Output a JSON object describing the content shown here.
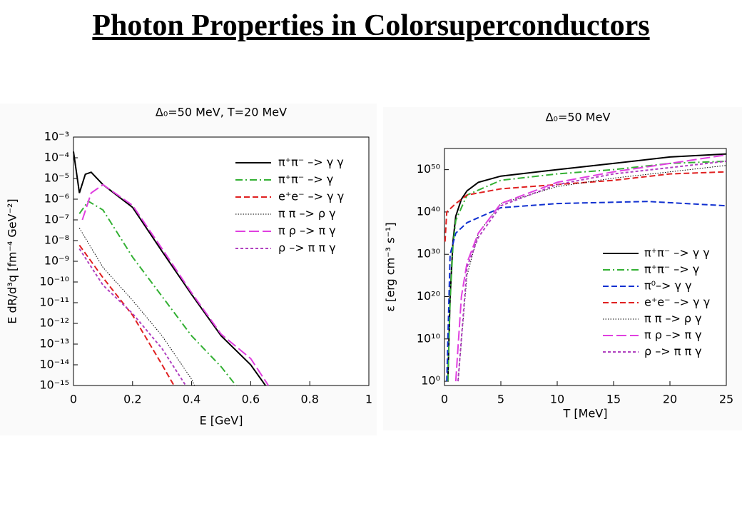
{
  "title": "Photon Properties in Colorsuperconductors",
  "chart_data": [
    {
      "type": "line",
      "title": "Δ₀=50 MeV, T=20 MeV",
      "x_label": "E [GeV]",
      "y_label": "E dR/d³q [fm⁻⁴ GeV⁻²]",
      "xlim": [
        0,
        1
      ],
      "xticks": [
        0,
        0.2,
        0.4,
        0.6,
        0.8,
        1
      ],
      "ylim": [
        1e-15,
        0.001
      ],
      "log_y": true,
      "yticks": [
        {
          "value": 0.001,
          "label": "10⁻³"
        },
        {
          "value": 0.0001,
          "label": "10⁻⁴"
        },
        {
          "value": 1e-05,
          "label": "10⁻⁵"
        },
        {
          "value": 1e-06,
          "label": "10⁻⁶"
        },
        {
          "value": 1e-07,
          "label": "10⁻⁷"
        },
        {
          "value": 1e-08,
          "label": "10⁻⁸"
        },
        {
          "value": 1e-09,
          "label": "10⁻⁹"
        },
        {
          "value": 1e-10,
          "label": "10⁻¹⁰"
        },
        {
          "value": 1e-11,
          "label": "10⁻¹¹"
        },
        {
          "value": 1e-12,
          "label": "10⁻¹²"
        },
        {
          "value": 1e-13,
          "label": "10⁻¹³"
        },
        {
          "value": 1e-14,
          "label": "10⁻¹⁴"
        },
        {
          "value": 1e-15,
          "label": "10⁻¹⁵"
        }
      ],
      "legend": "upper right",
      "series": [
        {
          "name": "π⁺π⁻ –> γ γ",
          "color": "#000000",
          "dash": "solid",
          "x": [
            0,
            0.02,
            0.04,
            0.06,
            0.1,
            0.2,
            0.3,
            0.4,
            0.5,
            0.6,
            0.65
          ],
          "values": [
            0.0002,
            2e-06,
            1.6e-05,
            2e-05,
            5e-06,
            4e-07,
            3e-09,
            2.5e-11,
            2.5e-13,
            1e-14,
            1e-15
          ]
        },
        {
          "name": "π⁺π⁻ –> γ",
          "color": "#33b033",
          "dash": "dashdot",
          "x": [
            0.02,
            0.05,
            0.1,
            0.2,
            0.3,
            0.4,
            0.5,
            0.55
          ],
          "values": [
            2e-07,
            8e-07,
            3e-07,
            1.6e-09,
            2e-11,
            2.5e-13,
            8e-15,
            1e-15
          ]
        },
        {
          "name": "e⁺e⁻ –> γ γ",
          "color": "#e02020",
          "dash": "dashed",
          "x": [
            0.02,
            0.1,
            0.2,
            0.3,
            0.34
          ],
          "values": [
            6e-09,
            1.6e-10,
            2.5e-12,
            1e-14,
            1e-15
          ]
        },
        {
          "name": "π π –> ρ γ",
          "color": "#000000",
          "dash": "dotted",
          "x": [
            0.02,
            0.1,
            0.2,
            0.3,
            0.4,
            0.41
          ],
          "values": [
            4e-08,
            5e-10,
            1.3e-11,
            2.5e-13,
            2e-15,
            1e-15
          ]
        },
        {
          "name": "π ρ –> π γ",
          "color": "#e040e0",
          "dash": "longdash",
          "x": [
            0.03,
            0.06,
            0.1,
            0.2,
            0.3,
            0.4,
            0.5,
            0.6,
            0.66
          ],
          "values": [
            1e-07,
            2e-06,
            5e-06,
            5e-07,
            4e-09,
            3e-11,
            3e-13,
            2e-14,
            1e-15
          ]
        },
        {
          "name": "ρ –> π π γ",
          "color": "#b040c0",
          "dash": "shortdash",
          "x": [
            0.02,
            0.1,
            0.2,
            0.3,
            0.38
          ],
          "values": [
            4e-09,
            7e-11,
            3e-12,
            6e-14,
            1e-15
          ]
        }
      ]
    },
    {
      "type": "line",
      "title": "Δ₀=50 MeV",
      "x_label": "T [MeV]",
      "y_label": "ε [erg cm⁻³ s⁻¹]",
      "xlim": [
        0,
        25
      ],
      "xticks": [
        0,
        5,
        10,
        15,
        20,
        25
      ],
      "ylim": [
        0.1,
        1e+55
      ],
      "log_y": true,
      "yticks": [
        {
          "value": 1,
          "label": "10⁰"
        },
        {
          "value": 10000000000.0,
          "label": "10¹⁰"
        },
        {
          "value": 1e+20,
          "label": "10²⁰"
        },
        {
          "value": 1e+30,
          "label": "10³⁰"
        },
        {
          "value": 1e+40,
          "label": "10⁴⁰"
        },
        {
          "value": 1e+50,
          "label": "10⁵⁰"
        }
      ],
      "legend": "lower right",
      "series": [
        {
          "name": "π⁺π⁻ –> γ γ",
          "color": "#000000",
          "dash": "solid",
          "x": [
            0.3,
            0.5,
            0.75,
            1,
            1.5,
            2,
            3,
            5,
            10,
            15,
            20,
            25
          ],
          "values": [
            1,
            1e+20,
            1e+33,
            1e+39,
            1e+43,
            1e+45,
            1e+47,
            3e+48,
            1e+50,
            3e+51,
            1e+53,
            5e+53
          ]
        },
        {
          "name": "π⁺π⁻ –> γ",
          "color": "#33b033",
          "dash": "dashdot",
          "x": [
            0.3,
            0.5,
            0.75,
            1,
            2,
            5,
            10,
            15,
            20,
            25
          ],
          "values": [
            1,
            1e+19,
            1e+32,
            1e+38,
            1e+44,
            3e+47,
            1e+49,
            1e+50,
            3e+51,
            1e+52
          ]
        },
        {
          "name": "π⁰–> γ γ",
          "color": "#1030d0",
          "dash": "dashed",
          "x": [
            0.2,
            0.5,
            1,
            2,
            5,
            10,
            18,
            25
          ],
          "values": [
            1,
            1e+30,
            1e+35,
            3e+37,
            1e+41,
            1e+42,
            3e+42,
            3e+41
          ]
        },
        {
          "name": "e⁺e⁻ –> γ γ",
          "color": "#e02020",
          "dash": "dashed",
          "x": [
            0.05,
            0.2,
            1,
            2,
            5,
            10,
            15,
            20,
            25
          ],
          "values": [
            1e+33,
            1e+40,
            1e+42,
            1e+44,
            3e+45,
            3e+46,
            3e+47,
            1e+49,
            3e+49
          ]
        },
        {
          "name": "π π –> ρ γ",
          "color": "#000000",
          "dash": "dotted",
          "x": [
            1.2,
            2,
            3,
            5,
            10,
            15,
            20,
            25
          ],
          "values": [
            1,
            1e+25,
            1e+35,
            1e+42,
            1e+46,
            1e+48,
            3e+49,
            1e+51
          ]
        },
        {
          "name": "π ρ –> π γ",
          "color": "#e040e0",
          "dash": "longdash",
          "x": [
            1,
            1.5,
            2,
            3,
            5,
            10,
            15,
            20,
            25
          ],
          "values": [
            1,
            1e+20,
            1e+28,
            1e+35,
            1e+42,
            1e+47,
            3e+49,
            3e+51,
            3e+53
          ]
        },
        {
          "name": "ρ –> π π γ",
          "color": "#b040c0",
          "dash": "shortdash",
          "x": [
            1.2,
            2,
            3,
            5,
            10,
            15,
            20,
            25
          ],
          "values": [
            1,
            1e+27,
            1e+34,
            3e+41,
            3e+46,
            1e+49,
            3e+50,
            1e+52
          ]
        }
      ]
    }
  ]
}
